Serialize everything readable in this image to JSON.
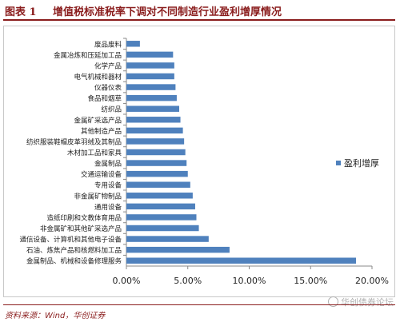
{
  "header": {
    "label": "图表 1",
    "title": "增值税标准税率下调对不同制造行业盈利增厚情况"
  },
  "footer": {
    "source": "资料来源：Wind，华创证券"
  },
  "watermark": {
    "text": "华创债券论坛",
    "icon": "wechat-icon"
  },
  "colors": {
    "bar": "#4f81bd",
    "header": "#8a1d1d"
  },
  "chart_data": {
    "type": "bar",
    "orientation": "horizontal",
    "title": "",
    "xlabel": "",
    "ylabel": "",
    "xlim": [
      0,
      0.2
    ],
    "x_ticks": [
      "0.00%",
      "5.00%",
      "10.00%",
      "15.00%",
      "20.00%"
    ],
    "grid": false,
    "legend_position": "right",
    "categories": [
      "废品废料",
      "金属冶炼和压延加工品",
      "化学产品",
      "电气机械和器材",
      "仪器仪表",
      "食品和烟草",
      "纺织品",
      "金属矿采选产品",
      "其他制造产品",
      "纺织服装鞋帽皮革羽绒及其制品",
      "木材加工品和家具",
      "金属制品",
      "交通运输设备",
      "专用设备",
      "非金属矿物制品",
      "通用设备",
      "造纸印刷和文教体育用品",
      "非金属矿和其他矿采选产品",
      "通信设备、计算机和其他电子设备",
      "石油、炼焦产品和核燃料加工品",
      "金属制品、机械和设备修理服务"
    ],
    "series": [
      {
        "name": "盈利增厚",
        "values": [
          0.011,
          0.038,
          0.039,
          0.039,
          0.04,
          0.041,
          0.043,
          0.044,
          0.046,
          0.047,
          0.048,
          0.049,
          0.05,
          0.052,
          0.054,
          0.056,
          0.057,
          0.059,
          0.067,
          0.084,
          0.187
        ]
      }
    ]
  }
}
